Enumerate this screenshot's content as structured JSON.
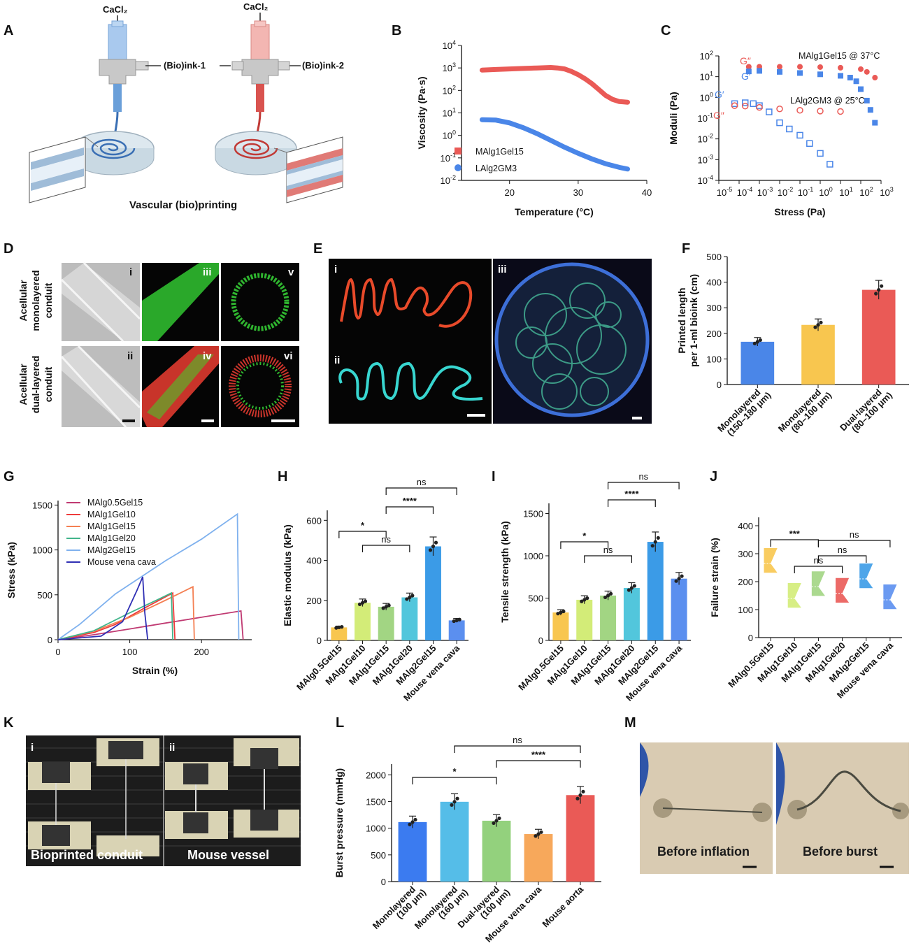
{
  "panel_letters": [
    "A",
    "B",
    "C",
    "D",
    "E",
    "F",
    "G",
    "H",
    "I",
    "J",
    "K",
    "L",
    "M"
  ],
  "panelA": {
    "cacl2_left": "CaCl₂",
    "cacl2_right": "CaCl₂",
    "ink1": "(Bio)ink-1",
    "ink2": "(Bio)ink-2",
    "caption": "Vascular (bio)printing"
  },
  "panelD": {
    "row1_label": [
      "Acellular",
      "monolayered",
      "conduit"
    ],
    "row2_label": [
      "Acellular",
      "dual-layered",
      "conduit"
    ],
    "roman": [
      "i",
      "iii",
      "v",
      "ii",
      "iv",
      "vi"
    ]
  },
  "panelE": {
    "roman": [
      "i",
      "ii",
      "iii"
    ]
  },
  "panelK": {
    "roman": [
      "i",
      "ii"
    ],
    "captions": [
      "Bioprinted conduit",
      "Mouse vessel"
    ]
  },
  "panelM": {
    "captions": [
      "Before inflation",
      "Before burst"
    ]
  },
  "colors": {
    "red": "#ea5a56",
    "blue": "#4a86e8",
    "yellow": "#f8c64f",
    "lime": "#d3ec78",
    "green": "#a2d583",
    "cyan": "#52c6dc",
    "azure": "#3b9be7",
    "steel": "#5b8fef",
    "orange": "#f7a85b"
  },
  "chart_data": [
    {
      "id": "B",
      "type": "line",
      "xlabel": "Temperature (°C)",
      "ylabel": "Viscosity (Pa·s)",
      "xlim": [
        13,
        40
      ],
      "ylim_log10": [
        -2,
        4
      ],
      "yscale": "log",
      "xticks": [
        20,
        30,
        40
      ],
      "yticks_log10": [
        -2,
        -1,
        0,
        1,
        2,
        3,
        4
      ],
      "legend_position": "bottom-left",
      "series": [
        {
          "name": "MAlg1Gel15",
          "color": "#ea5a56",
          "x": [
            16,
            18,
            20,
            22,
            24,
            26,
            27,
            28,
            29,
            30,
            31,
            32,
            33,
            34,
            35,
            36,
            37.2
          ],
          "y": [
            800,
            850,
            900,
            950,
            1000,
            1050,
            1000,
            900,
            700,
            500,
            330,
            200,
            110,
            60,
            40,
            32,
            30
          ]
        },
        {
          "name": "LAlg2GM3",
          "color": "#4a86e8",
          "x": [
            16,
            18,
            20,
            22,
            24,
            26,
            28,
            30,
            32,
            34,
            36,
            37.2
          ],
          "y": [
            5.0,
            4.8,
            3.6,
            2.2,
            1.2,
            0.6,
            0.3,
            0.16,
            0.09,
            0.055,
            0.038,
            0.032
          ]
        }
      ]
    },
    {
      "id": "C",
      "type": "scatter",
      "xlabel": "Stress (Pa)",
      "ylabel": "Moduli (Pa)",
      "xscale": "log",
      "yscale": "log",
      "xlim_log10": [
        -5,
        3
      ],
      "ylim_log10": [
        -4,
        2
      ],
      "annotations": [
        "MAlg1Gel15 @ 37°C",
        "LAlg2GM3 @ 25°C"
      ],
      "series": [
        {
          "name": "G″",
          "sample": "MAlg1Gel15 @ 37°C",
          "color": "#ea5a56",
          "marker": "filled-circle",
          "x": [
            0.0003,
            0.001,
            0.01,
            0.1,
            1,
            10,
            100,
            200,
            500
          ],
          "y": [
            30,
            30,
            30,
            30,
            29,
            27,
            23,
            17,
            9
          ]
        },
        {
          "name": "G′",
          "sample": "MAlg1Gel15 @ 37°C",
          "color": "#4a86e8",
          "marker": "filled-square",
          "x": [
            0.0003,
            0.001,
            0.01,
            0.1,
            1,
            10,
            30,
            60,
            100,
            200,
            300,
            500
          ],
          "y": [
            18,
            19,
            17,
            15,
            13,
            11,
            9,
            6,
            2.5,
            0.7,
            0.25,
            0.06
          ]
        },
        {
          "name": "G′",
          "sample": "LAlg2GM3 @ 25°C",
          "color": "#4a86e8",
          "marker": "crossed-square",
          "x": [
            6e-05,
            0.0002,
            0.0005,
            0.001,
            0.003,
            0.01,
            0.03,
            0.1,
            0.3,
            1,
            3
          ],
          "y": [
            0.5,
            0.55,
            0.5,
            0.4,
            0.2,
            0.06,
            0.03,
            0.015,
            0.006,
            0.002,
            0.0006
          ]
        },
        {
          "name": "G″",
          "sample": "LAlg2GM3 @ 25°C",
          "color": "#ea5a56",
          "marker": "crossed-circle",
          "x": [
            6e-05,
            0.0002,
            0.001,
            0.01,
            0.1,
            1,
            10
          ],
          "y": [
            0.4,
            0.38,
            0.33,
            0.28,
            0.24,
            0.22,
            0.21
          ]
        }
      ]
    },
    {
      "id": "F",
      "type": "bar",
      "ylabel": "Printed length per 1-ml bioink (cm)",
      "ylim": [
        0,
        500
      ],
      "yticks": [
        0,
        100,
        200,
        300,
        400,
        500
      ],
      "categories": [
        "Monolayered (150–180 μm)",
        "Monolayered (80–100 μm)",
        "Dual-layered (80–100 μm)"
      ],
      "values": [
        167,
        233,
        370
      ],
      "colors": [
        "#4a86e8",
        "#f8c64f",
        "#ea5a56"
      ]
    },
    {
      "id": "G",
      "type": "line",
      "xlabel": "Strain (%)",
      "ylabel": "Stress (kPa)",
      "xlim": [
        0,
        270
      ],
      "ylim": [
        0,
        1550
      ],
      "xticks": [
        0,
        100,
        200
      ],
      "yticks": [
        0,
        500,
        1000,
        1500
      ],
      "legend_position": "top-left",
      "series": [
        {
          "name": "MAlg0.5Gel15",
          "color": "#c03a72",
          "x": [
            0,
            50,
            100,
            150,
            200,
            255,
            258
          ],
          "y": [
            0,
            55,
            120,
            185,
            250,
            320,
            0
          ]
        },
        {
          "name": "MAlg1Gel10",
          "color": "#ee3b3b",
          "x": [
            0,
            50,
            80,
            120,
            160,
            163
          ],
          "y": [
            0,
            80,
            170,
            350,
            520,
            0
          ]
        },
        {
          "name": "MAlg1Gel15",
          "color": "#f47f52",
          "x": [
            0,
            50,
            100,
            150,
            188,
            190
          ],
          "y": [
            0,
            95,
            250,
            440,
            590,
            0
          ]
        },
        {
          "name": "MAlg1Gel20",
          "color": "#41b58b",
          "x": [
            0,
            50,
            100,
            140,
            158,
            160
          ],
          "y": [
            0,
            100,
            300,
            450,
            520,
            0
          ]
        },
        {
          "name": "MAlg2Gel15",
          "color": "#7fb1ee",
          "x": [
            0,
            30,
            80,
            150,
            200,
            250,
            252
          ],
          "y": [
            0,
            170,
            510,
            880,
            1120,
            1400,
            0
          ]
        },
        {
          "name": "Mouse vena cava",
          "color": "#2f2fb4",
          "x": [
            0,
            60,
            90,
            110,
            118,
            121,
            125
          ],
          "y": [
            0,
            40,
            200,
            550,
            700,
            300,
            0
          ]
        }
      ]
    },
    {
      "id": "H",
      "type": "bar",
      "ylabel": "Elastic modulus (kPa)",
      "ylim": [
        0,
        650
      ],
      "yticks": [
        0,
        200,
        400,
        600
      ],
      "categories": [
        "MAlg0.5Gel15",
        "MAlg1Gel10",
        "MAlg1Gel15",
        "MAlg1Gel20",
        "MAlg2Gel15",
        "Mouse vena cava"
      ],
      "values": [
        65,
        188,
        168,
        215,
        470,
        100
      ],
      "colors": [
        "#f8c64f",
        "#d3ec78",
        "#a2d583",
        "#52c6dc",
        "#3b9be7",
        "#5b8fef"
      ],
      "significance": [
        {
          "from": 0,
          "to": 2,
          "label": "*"
        },
        {
          "from": 1,
          "to": 3,
          "label": "ns"
        },
        {
          "from": 2,
          "to": 4,
          "label": "****"
        },
        {
          "from": 2,
          "to": 5,
          "label": "ns"
        }
      ]
    },
    {
      "id": "I",
      "type": "bar",
      "ylabel": "Tensile strength (kPa)",
      "ylim": [
        0,
        1620
      ],
      "yticks": [
        0,
        500,
        1000,
        1500
      ],
      "categories": [
        "MAlg0.5Gel15",
        "MAlg1Gel10",
        "MAlg1Gel15",
        "MAlg1Gel20",
        "MAlg2Gel15",
        "Mouse vena cava"
      ],
      "values": [
        330,
        480,
        530,
        620,
        1165,
        730
      ],
      "colors": [
        "#f8c64f",
        "#d3ec78",
        "#a2d583",
        "#52c6dc",
        "#3b9be7",
        "#5b8fef"
      ],
      "significance": [
        {
          "from": 0,
          "to": 2,
          "label": "*"
        },
        {
          "from": 1,
          "to": 3,
          "label": "ns"
        },
        {
          "from": 2,
          "to": 4,
          "label": "****"
        },
        {
          "from": 2,
          "to": 5,
          "label": "ns"
        }
      ]
    },
    {
      "id": "J",
      "type": "violin",
      "ylabel": "Failure strain (%)",
      "ylim": [
        0,
        430
      ],
      "yticks": [
        0,
        100,
        200,
        300,
        400
      ],
      "categories": [
        "MAlg0.5Gel15",
        "MAlg1Gel10",
        "MAlg1Gel15",
        "MAlg1Gel20",
        "MAlg2Gel15",
        "Mouse vena cava"
      ],
      "values": [
        265,
        140,
        182,
        158,
        210,
        135
      ],
      "colors": [
        "#f8c64f",
        "#d3ec78",
        "#a2d583",
        "#ea5a56",
        "#3b9be7",
        "#5b8fef"
      ],
      "significance": [
        {
          "from": 0,
          "to": 2,
          "label": "***"
        },
        {
          "from": 1,
          "to": 3,
          "label": "ns"
        },
        {
          "from": 2,
          "to": 4,
          "label": "ns"
        },
        {
          "from": 2,
          "to": 5,
          "label": "ns"
        }
      ]
    },
    {
      "id": "L",
      "type": "bar",
      "ylabel": "Burst pressure (mmHg)",
      "ylim": [
        0,
        2200
      ],
      "yticks": [
        0,
        500,
        1000,
        1500,
        2000
      ],
      "categories": [
        "Monolayered (100 μm)",
        "Monolayered (160 μm)",
        "Dual-layered (100 μm)",
        "Mouse vena cava",
        "Mouse aorta"
      ],
      "values": [
        1115,
        1495,
        1140,
        890,
        1620
      ],
      "colors": [
        "#3b7bf0",
        "#55bde8",
        "#93d17d",
        "#f7a85b",
        "#ea5a56"
      ],
      "significance": [
        {
          "from": 0,
          "to": 2,
          "label": "*"
        },
        {
          "from": 2,
          "to": 4,
          "label": "****"
        },
        {
          "from": 1,
          "to": 4,
          "label": "ns"
        }
      ]
    }
  ]
}
